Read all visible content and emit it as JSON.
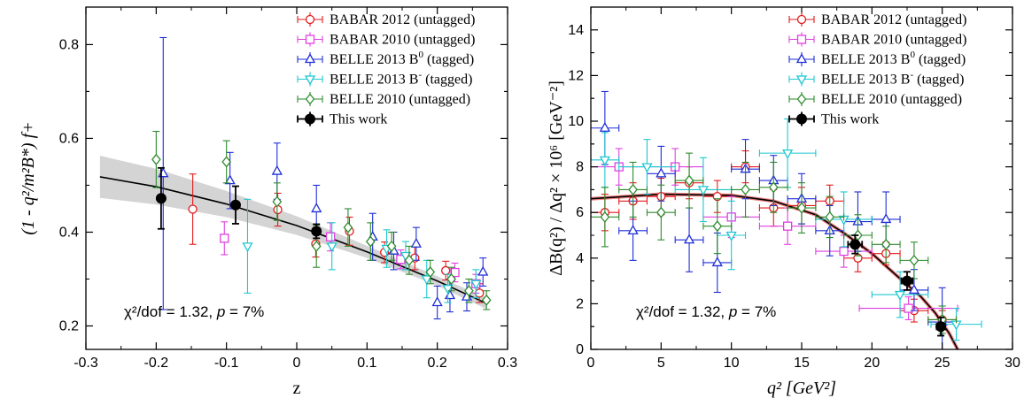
{
  "chart_data": [
    {
      "type": "scatter",
      "panel": "left",
      "xlabel": "z",
      "ylabel": "(1 - q²/m²B*) f+",
      "xlim": [
        -0.3,
        0.3
      ],
      "ylim": [
        0.15,
        0.88
      ],
      "xticks": [
        -0.3,
        -0.2,
        -0.1,
        0,
        0.1,
        0.2,
        0.3
      ],
      "xtick_labels": [
        "-0.3",
        "-0.2",
        "-0.1",
        "0",
        "0.1",
        "0.2",
        "0.3"
      ],
      "yticks": [
        0.2,
        0.4,
        0.6,
        0.8
      ],
      "ytick_labels": [
        "0.2",
        "0.4",
        "0.6",
        "0.8"
      ],
      "annotation": {
        "main": "χ²/dof = 1.32,",
        "pvar": "p",
        "pval": " = 7%"
      },
      "legend_position": "top-right",
      "fit_curve": {
        "x": [
          -0.28,
          -0.2,
          -0.1,
          0.0,
          0.1,
          0.2,
          0.27
        ],
        "y": [
          0.518,
          0.497,
          0.46,
          0.414,
          0.358,
          0.296,
          0.248
        ],
        "band_halfwidth": [
          0.045,
          0.038,
          0.028,
          0.02,
          0.013,
          0.01,
          0.012
        ]
      },
      "series": [
        {
          "name": "BABAR 2012 (untagged)",
          "color": "#e41a1c",
          "marker": "circle",
          "points": [
            [
              -0.148,
              0.449,
              0.075
            ],
            [
              -0.027,
              0.448,
              0.035
            ],
            [
              0.027,
              0.375,
              0.028
            ],
            [
              0.075,
              0.402,
              0.03
            ],
            [
              0.125,
              0.357,
              0.022
            ],
            [
              0.168,
              0.345,
              0.025
            ],
            [
              0.212,
              0.318,
              0.02
            ],
            [
              0.26,
              0.27,
              0.02
            ]
          ]
        },
        {
          "name": "BABAR 2010 (untagged)",
          "color": "#e040e0",
          "marker": "square",
          "points": [
            [
              -0.103,
              0.387,
              0.035
            ],
            [
              0.048,
              0.39,
              0.03
            ],
            [
              0.148,
              0.342,
              0.02
            ],
            [
              0.225,
              0.314,
              0.02
            ],
            [
              0.255,
              0.29,
              0.02
            ]
          ]
        },
        {
          "name": "BELLE 2013 B0 (tagged)",
          "label_main": "BELLE 2013 B",
          "label_sup": "0",
          "label_rest": " (tagged)",
          "color": "#1f2ed8",
          "marker": "triangle-up",
          "points": [
            [
              -0.19,
              0.525,
              0.29
            ],
            [
              -0.095,
              0.51,
              0.06
            ],
            [
              -0.028,
              0.53,
              0.06
            ],
            [
              0.028,
              0.45,
              0.05
            ],
            [
              0.108,
              0.39,
              0.05
            ],
            [
              0.138,
              0.36,
              0.04
            ],
            [
              0.17,
              0.375,
              0.035
            ],
            [
              0.2,
              0.25,
              0.035
            ],
            [
              0.218,
              0.265,
              0.035
            ],
            [
              0.242,
              0.262,
              0.03
            ],
            [
              0.265,
              0.315,
              0.03
            ]
          ]
        },
        {
          "name": "BELLE 2013 B- (tagged)",
          "label_main": "BELLE 2013 B",
          "label_sup": "-",
          "label_rest": " (tagged)",
          "color": "#1ec8d0",
          "marker": "triangle-down",
          "points": [
            [
              -0.07,
              0.37,
              0.1
            ],
            [
              0.05,
              0.37,
              0.05
            ],
            [
              0.128,
              0.365,
              0.04
            ],
            [
              0.155,
              0.35,
              0.03
            ],
            [
              0.185,
              0.3,
              0.04
            ],
            [
              0.215,
              0.28,
              0.03
            ],
            [
              0.255,
              0.29,
              0.03
            ]
          ]
        },
        {
          "name": "BELLE 2010 (untagged)",
          "color": "#2e8b2e",
          "marker": "diamond",
          "points": [
            [
              -0.2,
              0.555,
              0.06
            ],
            [
              -0.1,
              0.55,
              0.045
            ],
            [
              -0.028,
              0.465,
              0.04
            ],
            [
              0.028,
              0.37,
              0.045
            ],
            [
              0.073,
              0.41,
              0.04
            ],
            [
              0.105,
              0.38,
              0.04
            ],
            [
              0.135,
              0.37,
              0.03
            ],
            [
              0.16,
              0.34,
              0.03
            ],
            [
              0.19,
              0.315,
              0.025
            ],
            [
              0.22,
              0.3,
              0.025
            ],
            [
              0.245,
              0.275,
              0.025
            ],
            [
              0.27,
              0.255,
              0.02
            ]
          ]
        },
        {
          "name": "This work",
          "color": "#000000",
          "marker": "filled-circle",
          "points": [
            [
              -0.193,
              0.472,
              0.065
            ],
            [
              -0.087,
              0.458,
              0.04
            ],
            [
              0.028,
              0.402,
              0.015
            ]
          ]
        }
      ]
    },
    {
      "type": "scatter",
      "panel": "right",
      "xlabel": "q² [GeV²]",
      "ylabel": "ΔB(q²) / Δq² × 10⁶ [GeV⁻²]",
      "xlim": [
        0,
        30
      ],
      "ylim": [
        0,
        15
      ],
      "xticks": [
        0,
        5,
        10,
        15,
        20,
        25,
        30
      ],
      "xtick_labels": [
        "0",
        "5",
        "10",
        "15",
        "20",
        "25",
        "30"
      ],
      "yticks": [
        0,
        2,
        4,
        6,
        8,
        10,
        12,
        14
      ],
      "ytick_labels": [
        "0",
        "2",
        "4",
        "6",
        "8",
        "10",
        "12",
        "14"
      ],
      "annotation": {
        "main": "χ²/dof = 1.32,",
        "pvar": "p",
        "pval": " = 7%"
      },
      "legend_position": "top-right",
      "fit_curve": {
        "x": [
          0,
          5,
          10,
          13,
          16,
          18,
          20,
          22,
          23.5,
          24.5,
          25.5,
          26.1
        ],
        "y": [
          6.6,
          6.8,
          6.75,
          6.5,
          5.9,
          5.1,
          4.2,
          3.1,
          2.3,
          1.6,
          0.7,
          0.0
        ]
      },
      "series": [
        {
          "name": "BABAR 2012 (untagged)",
          "color": "#e41a1c",
          "marker": "circle",
          "points": [
            [
              1,
              6.0,
              0.8,
              1
            ],
            [
              3,
              6.5,
              0.8,
              1
            ],
            [
              5,
              6.7,
              0.8,
              1
            ],
            [
              7,
              7.3,
              0.7,
              1
            ],
            [
              9,
              6.7,
              0.7,
              1
            ],
            [
              11,
              8.0,
              0.7,
              1
            ],
            [
              13,
              6.2,
              0.8,
              1
            ],
            [
              15,
              6.3,
              0.8,
              1
            ],
            [
              17,
              6.5,
              0.7,
              1
            ],
            [
              19,
              4.0,
              0.6,
              1
            ],
            [
              21,
              4.2,
              0.5,
              1
            ],
            [
              23,
              1.7,
              0.5,
              1
            ],
            [
              25,
              1.3,
              0.4,
              1
            ]
          ]
        },
        {
          "name": "BABAR 2010 (untagged)",
          "color": "#e040e0",
          "marker": "square",
          "points": [
            [
              2,
              8.0,
              0.8,
              2
            ],
            [
              6,
              8.0,
              0.8,
              2
            ],
            [
              10,
              5.8,
              0.9,
              2
            ],
            [
              14,
              5.4,
              0.8,
              2
            ],
            [
              18,
              4.3,
              0.7,
              2
            ],
            [
              22.6,
              1.8,
              0.5,
              3.5
            ]
          ]
        },
        {
          "name": "BELLE 2013 B0 (tagged)",
          "label_main": "BELLE 2013 B",
          "label_sup": "0",
          "label_rest": " (tagged)",
          "color": "#1f2ed8",
          "marker": "triangle-up",
          "points": [
            [
              1,
              9.7,
              1.6,
              1
            ],
            [
              3,
              5.2,
              1.3,
              1
            ],
            [
              5,
              7.7,
              1.2,
              1
            ],
            [
              7,
              4.8,
              1.4,
              1
            ],
            [
              9,
              3.8,
              1.3,
              1
            ],
            [
              11,
              7.9,
              1.3,
              1
            ],
            [
              13,
              7.4,
              1.1,
              1
            ],
            [
              15,
              6.6,
              1.1,
              1
            ],
            [
              17,
              5.2,
              1.1,
              1
            ],
            [
              19,
              5.6,
              1.3,
              1
            ],
            [
              21,
              5.7,
              1.2,
              1
            ],
            [
              23,
              2.6,
              0.9,
              1
            ],
            [
              25,
              1.2,
              1.5,
              1
            ]
          ]
        },
        {
          "name": "BELLE 2013 B- (tagged)",
          "label_main": "BELLE 2013 B",
          "label_sup": "-",
          "label_rest": " (tagged)",
          "color": "#1ec8d0",
          "marker": "triangle-down",
          "points": [
            [
              1,
              8.3,
              1.2,
              1
            ],
            [
              4,
              8.0,
              1.2,
              2
            ],
            [
              8,
              7.0,
              1.4,
              2
            ],
            [
              10,
              5.0,
              1.5,
              1
            ],
            [
              14,
              8.6,
              1.5,
              2
            ],
            [
              18,
              5.7,
              1.2,
              2
            ],
            [
              22,
              2.4,
              1,
              2
            ],
            [
              26,
              1.1,
              0.7,
              1.8
            ]
          ]
        },
        {
          "name": "BELLE 2010 (untagged)",
          "color": "#2e8b2e",
          "marker": "diamond",
          "points": [
            [
              1,
              5.8,
              1.3,
              1
            ],
            [
              3,
              7.0,
              1.2,
              1
            ],
            [
              5,
              6.0,
              1.2,
              1
            ],
            [
              7,
              7.4,
              1.2,
              1
            ],
            [
              9,
              5.4,
              1.2,
              1
            ],
            [
              11,
              7.0,
              1.2,
              1
            ],
            [
              13,
              7.1,
              1.1,
              1
            ],
            [
              15,
              6.2,
              1.1,
              1
            ],
            [
              17,
              5.8,
              0.9,
              1
            ],
            [
              19,
              5.0,
              0.9,
              1
            ],
            [
              21,
              4.6,
              0.8,
              1
            ],
            [
              23,
              3.9,
              0.8,
              1
            ],
            [
              25,
              1.3,
              0.6,
              1
            ]
          ]
        },
        {
          "name": "This work",
          "color": "#000000",
          "marker": "filled-circle",
          "points": [
            [
              18.8,
              4.6,
              0.4,
              0.5
            ],
            [
              22.5,
              3.0,
              0.4,
              0.4
            ],
            [
              24.9,
              1.0,
              0.4,
              0.3
            ]
          ]
        }
      ]
    }
  ]
}
